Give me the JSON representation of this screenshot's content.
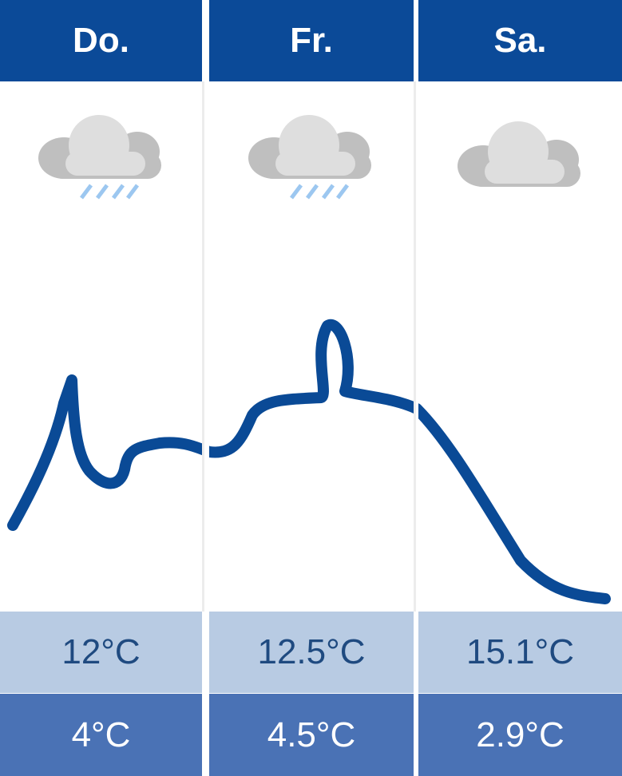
{
  "colors": {
    "header": "#0b4a98",
    "high_row": "#b8cbe3",
    "low_row": "#4a72b5",
    "curve": "#0a4a96"
  },
  "days": [
    {
      "label": "Do.",
      "icon": "cloud-rain-icon",
      "high": "12°C",
      "low": "4°C"
    },
    {
      "label": "Fr.",
      "icon": "cloud-rain-icon",
      "high": "12.5°C",
      "low": "4.5°C"
    },
    {
      "label": "Sa.",
      "icon": "cloud-icon",
      "high": "15.1°C",
      "low": "2.9°C"
    }
  ]
}
